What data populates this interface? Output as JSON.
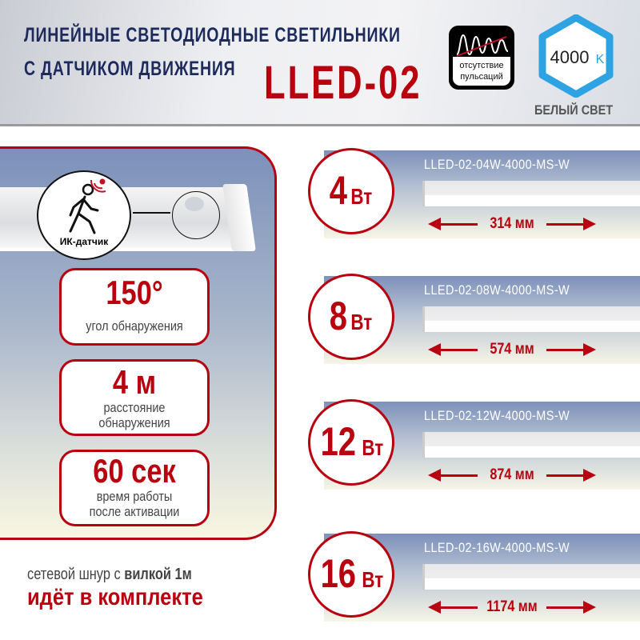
{
  "header": {
    "title_line1": "ЛИНЕЙНЫЕ СВЕТОДИОДНЫЕ СВЕТИЛЬНИКИ",
    "title_line2": "С ДАТЧИКОМ ДВИЖЕНИЯ",
    "model": "LLED-02",
    "pulse_badge": {
      "line1": "отсутствие",
      "line2": "пульсаций",
      "icon": "waveform-crossed-icon"
    },
    "color_temp": {
      "value": "4000",
      "unit": "K",
      "label": "БЕЛЫЙ СВЕТ"
    }
  },
  "sensor": {
    "label": "ИК-датчик",
    "icon": "walking-person-motion-icon"
  },
  "stats": [
    {
      "value": "150°",
      "caption1": "угол обнаружения",
      "caption2": ""
    },
    {
      "value": "4 м",
      "caption1": "расстояние",
      "caption2": "обнаружения"
    },
    {
      "value": "60 сек",
      "caption1": "время работы",
      "caption2": "после активации"
    }
  ],
  "cord": {
    "prefix": "сетевой шнур с ",
    "bold": "вилкой 1м",
    "line2": "идёт в комплекте"
  },
  "products": [
    {
      "power": "4",
      "unit": "Вт",
      "code": "LLED-02-04W-4000-MS-W",
      "length": "314 мм"
    },
    {
      "power": "8",
      "unit": "Вт",
      "code": "LLED-02-08W-4000-MS-W",
      "length": "574 мм"
    },
    {
      "power": "12",
      "unit": "Вт",
      "code": "LLED-02-12W-4000-MS-W",
      "length": "874 мм"
    },
    {
      "power": "16",
      "unit": "Вт",
      "code": "LLED-02-16W-4000-MS-W",
      "length": "1174 мм"
    }
  ],
  "colors": {
    "brand_red": "#b8000f",
    "navy": "#1d2a5c",
    "hex_blue": "#2ea3e3"
  }
}
